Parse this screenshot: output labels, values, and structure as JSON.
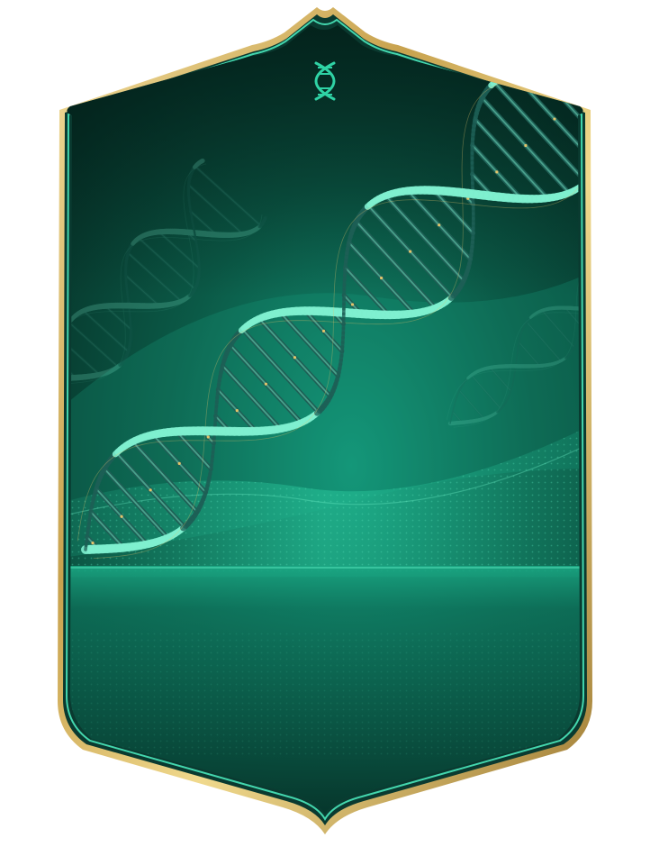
{
  "card": {
    "type": "blank player card",
    "theme": "dna helix",
    "colors": {
      "frame_outer": "#c8a24e",
      "frame_highlight": "#f3df9e",
      "inner_line": "#43d6ad",
      "background_dark": "#04261f",
      "background_mid": "#0b5a47",
      "background_light": "#139477",
      "helix": "#7ff0cf",
      "helix_shadow": "#1e5f55",
      "gold_fleck": "#e4c46a"
    },
    "icons": {
      "top_emblem": "dna-icon"
    },
    "layers": {
      "main_helix": "dna-helix-main",
      "ghost_helix_left": "dna-helix-ghost-left",
      "ghost_helix_right": "dna-helix-ghost-right",
      "wave": "wave-band",
      "floor": "floor-horizon"
    }
  }
}
